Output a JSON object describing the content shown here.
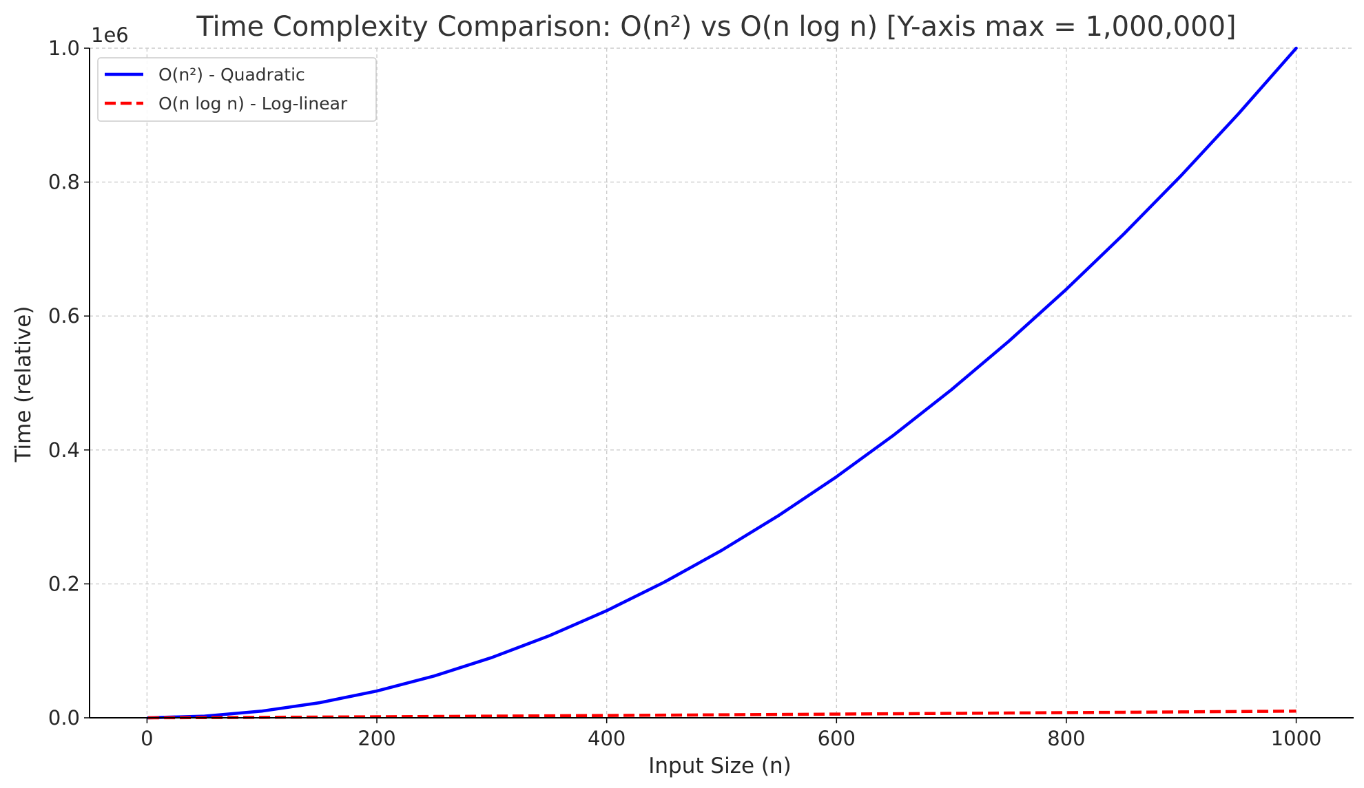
{
  "chart_data": {
    "type": "line",
    "title": "Time Complexity Comparison: O(n²) vs O(n log n) [Y-axis max = 1,000,000]",
    "xlabel": "Input Size (n)",
    "ylabel": "Time (relative)",
    "y_offset_label": "1e6",
    "xlim": [
      -50,
      1050
    ],
    "ylim": [
      0,
      1000000
    ],
    "x_ticks": [
      0,
      200,
      400,
      600,
      800,
      1000
    ],
    "x_tick_labels": [
      "0",
      "200",
      "400",
      "600",
      "800",
      "1000"
    ],
    "y_ticks": [
      0,
      200000,
      400000,
      600000,
      800000,
      1000000
    ],
    "y_tick_labels": [
      "0.0",
      "0.2",
      "0.4",
      "0.6",
      "0.8",
      "1.0"
    ],
    "grid": true,
    "legend_position": "top-left",
    "x": [
      1,
      50,
      100,
      150,
      200,
      250,
      300,
      350,
      400,
      450,
      500,
      550,
      600,
      650,
      700,
      750,
      800,
      850,
      900,
      950,
      1000
    ],
    "series": [
      {
        "name": "O(n²) - Quadratic",
        "color": "#0000ff",
        "style": "solid",
        "values": [
          1,
          2500,
          10000,
          22500,
          40000,
          62500,
          90000,
          122500,
          160000,
          202500,
          250000,
          302500,
          360000,
          422500,
          490000,
          562500,
          640000,
          722500,
          810000,
          902500,
          1000000
        ]
      },
      {
        "name": "O(n log n) - Log-linear",
        "color": "#ff0000",
        "style": "dashed",
        "values": [
          0,
          282,
          664,
          1084,
          1529,
          1991,
          2469,
          2958,
          3458,
          3966,
          4483,
          5008,
          5537,
          6073,
          6616,
          7162,
          7715,
          8270,
          8831,
          9396,
          9966
        ]
      }
    ]
  }
}
